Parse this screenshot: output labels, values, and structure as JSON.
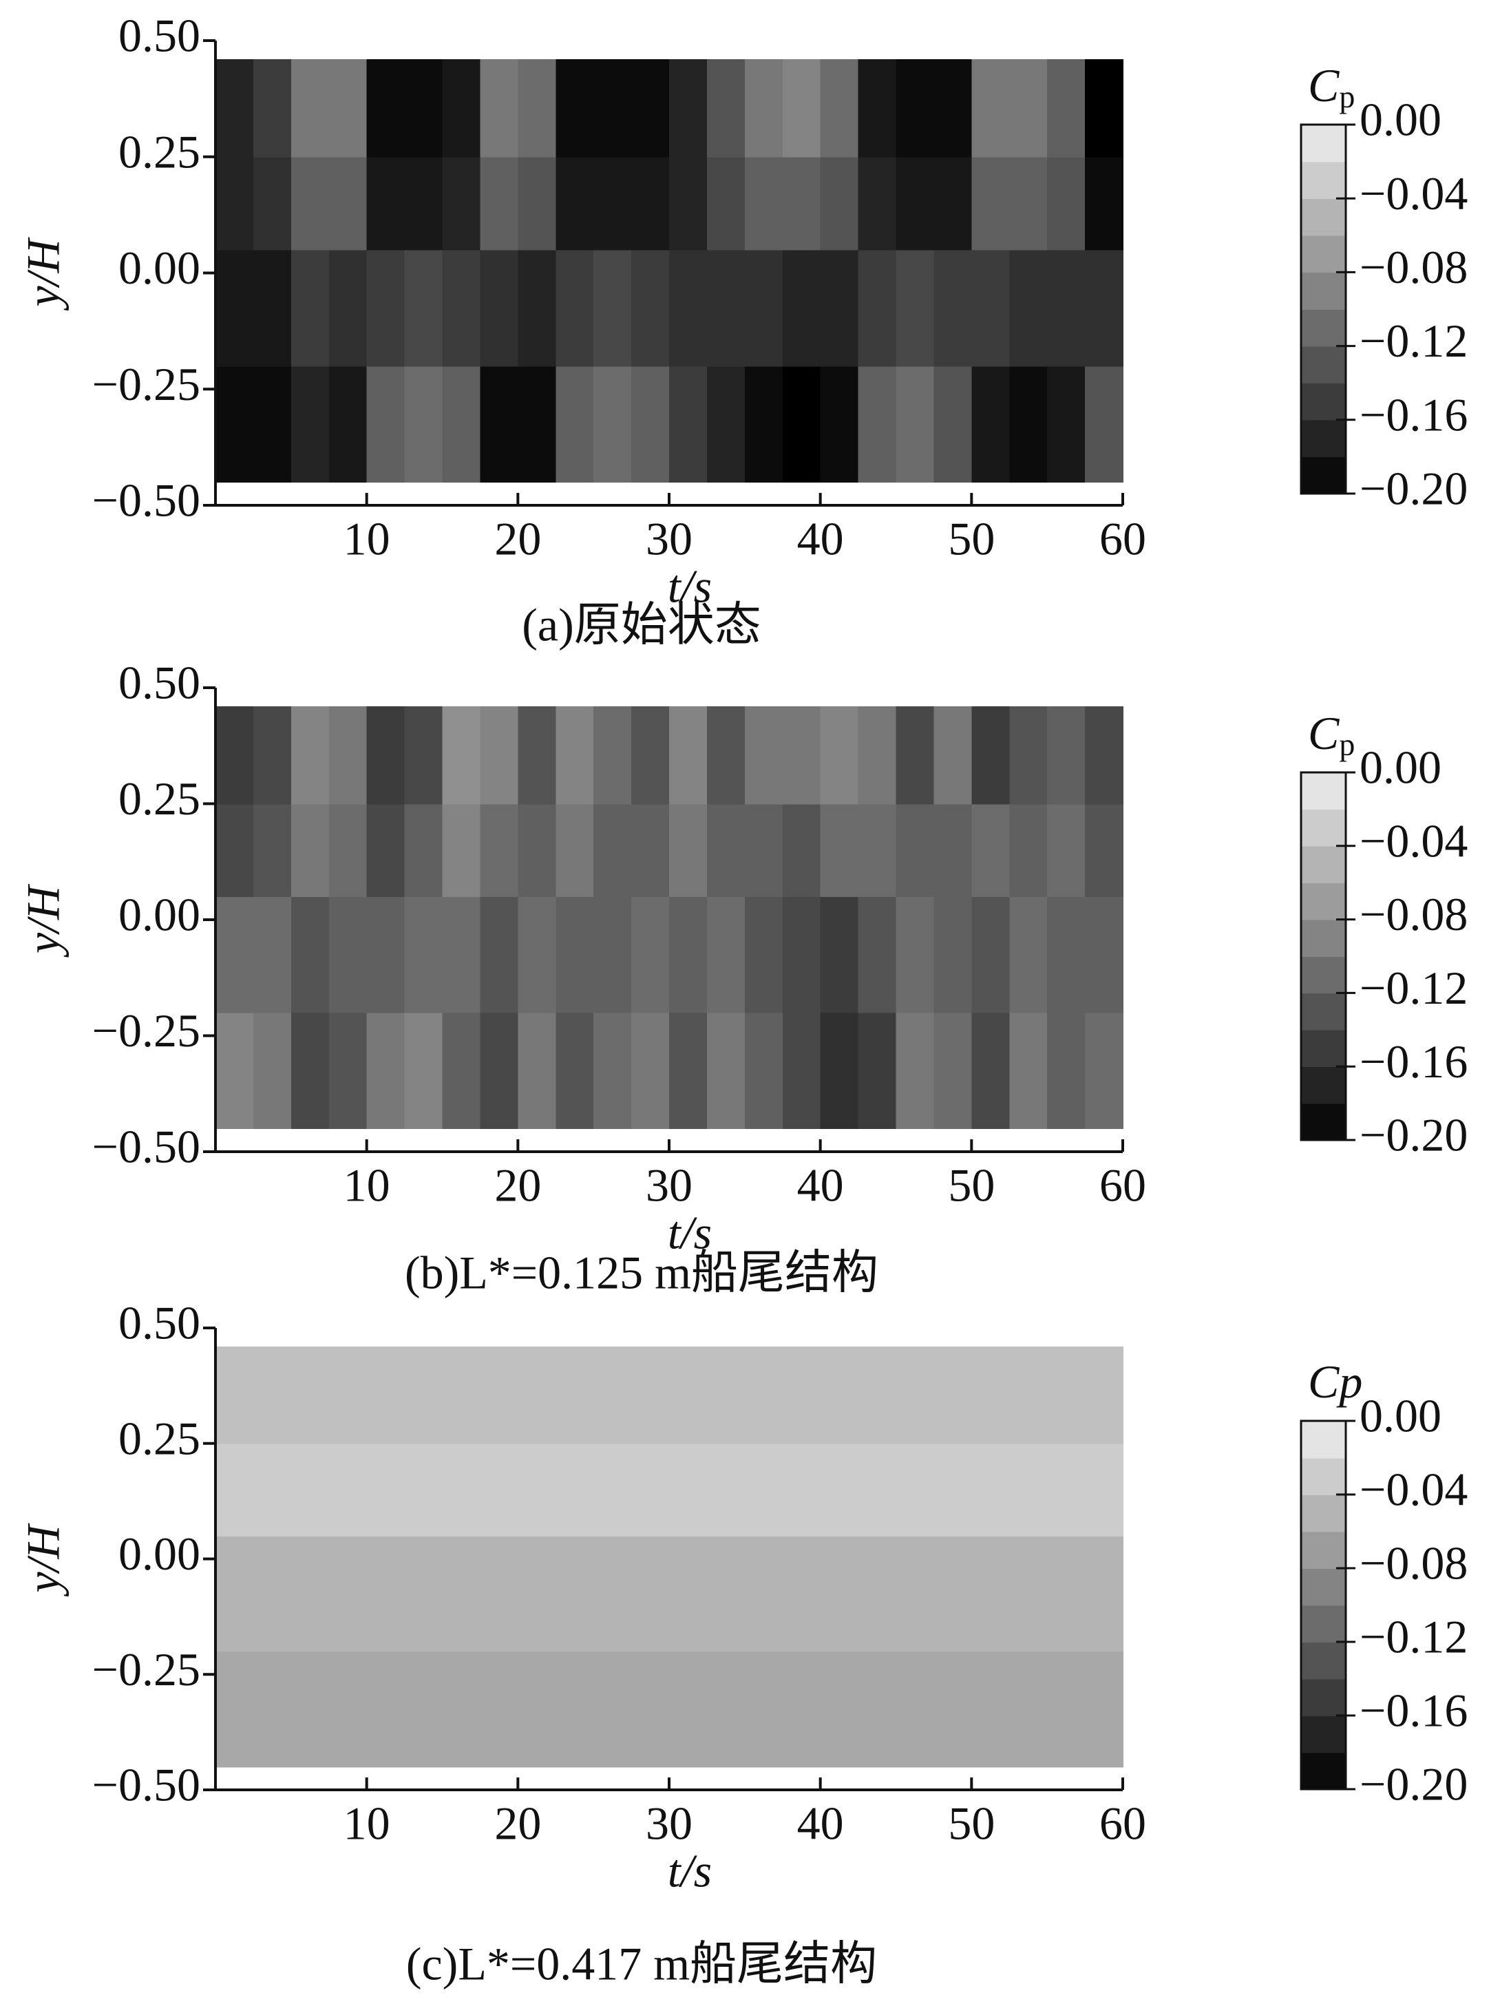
{
  "chart_data": [
    {
      "type": "heatmap",
      "caption": "(a)原始状态",
      "xlabel": "t/s",
      "ylabel": "y/H",
      "xlim": [
        0,
        60
      ],
      "ylim": [
        -0.5,
        0.5
      ],
      "xticks": [
        10,
        20,
        30,
        40,
        50,
        60
      ],
      "yticks": [
        {
          "value": -0.5,
          "label": "−0.50"
        },
        {
          "value": -0.25,
          "label": "−0.25"
        },
        {
          "value": 0,
          "label": "0.00"
        },
        {
          "value": 0.25,
          "label": "0.25"
        },
        {
          "value": 0.5,
          "label": "0.50"
        }
      ],
      "x_edges": [
        0,
        2.5,
        5,
        7.5,
        10,
        12.5,
        15,
        17.5,
        20,
        22.5,
        25,
        27.5,
        30,
        32.5,
        35,
        37.5,
        40,
        42.5,
        45,
        47.5,
        50,
        52.5,
        55,
        57.5,
        60
      ],
      "y_edges": [
        -0.45,
        -0.2,
        0.05,
        0.25,
        0.46
      ],
      "values": [
        [
          -0.19,
          -0.19,
          -0.17,
          -0.18,
          -0.12,
          -0.11,
          -0.12,
          -0.19,
          -0.19,
          -0.12,
          -0.11,
          -0.12,
          -0.15,
          -0.17,
          -0.19,
          -0.2,
          -0.19,
          -0.12,
          -0.11,
          -0.13,
          -0.18,
          -0.19,
          -0.18,
          -0.13
        ],
        [
          -0.18,
          -0.18,
          -0.15,
          -0.16,
          -0.15,
          -0.14,
          -0.15,
          -0.16,
          -0.17,
          -0.15,
          -0.14,
          -0.15,
          -0.16,
          -0.16,
          -0.16,
          -0.17,
          -0.17,
          -0.15,
          -0.14,
          -0.15,
          -0.15,
          -0.16,
          -0.16,
          -0.16
        ],
        [
          -0.17,
          -0.16,
          -0.12,
          -0.12,
          -0.18,
          -0.18,
          -0.17,
          -0.12,
          -0.13,
          -0.18,
          -0.18,
          -0.18,
          -0.17,
          -0.14,
          -0.12,
          -0.12,
          -0.13,
          -0.17,
          -0.18,
          -0.18,
          -0.12,
          -0.12,
          -0.13,
          -0.19
        ],
        [
          -0.17,
          -0.15,
          -0.1,
          -0.1,
          -0.19,
          -0.19,
          -0.18,
          -0.1,
          -0.11,
          -0.19,
          -0.19,
          -0.19,
          -0.17,
          -0.13,
          -0.1,
          -0.09,
          -0.11,
          -0.18,
          -0.19,
          -0.19,
          -0.1,
          -0.1,
          -0.12,
          -0.2
        ]
      ],
      "colorbar": {
        "label": {
          "symbol": "C",
          "subscript": "p"
        },
        "lim": [
          -0.2,
          0
        ],
        "ticks": [
          {
            "value": 0,
            "label": "0.00"
          },
          {
            "value": -0.04,
            "label": "−0.04"
          },
          {
            "value": -0.08,
            "label": "−0.08"
          },
          {
            "value": -0.12,
            "label": "−0.12"
          },
          {
            "value": -0.16,
            "label": "−0.16"
          },
          {
            "value": -0.2,
            "label": "−0.20"
          }
        ]
      }
    },
    {
      "type": "heatmap",
      "caption": "(b)L*=0.125 m船尾结构",
      "xlabel": "t/s",
      "ylabel": "y/H",
      "xlim": [
        0,
        60
      ],
      "ylim": [
        -0.5,
        0.5
      ],
      "xticks": [
        10,
        20,
        30,
        40,
        50,
        60
      ],
      "yticks": [
        {
          "value": -0.5,
          "label": "−0.50"
        },
        {
          "value": -0.25,
          "label": "−0.25"
        },
        {
          "value": 0,
          "label": "0.00"
        },
        {
          "value": 0.25,
          "label": "0.25"
        },
        {
          "value": 0.5,
          "label": "0.50"
        }
      ],
      "x_edges": [
        0,
        2.5,
        5,
        7.5,
        10,
        12.5,
        15,
        17.5,
        20,
        22.5,
        25,
        27.5,
        30,
        32.5,
        35,
        37.5,
        40,
        42.5,
        45,
        47.5,
        50,
        52.5,
        55,
        57.5,
        60
      ],
      "y_edges": [
        -0.45,
        -0.2,
        0.05,
        0.25,
        0.46
      ],
      "values": [
        [
          -0.09,
          -0.1,
          -0.14,
          -0.13,
          -0.1,
          -0.09,
          -0.12,
          -0.14,
          -0.1,
          -0.13,
          -0.11,
          -0.1,
          -0.13,
          -0.1,
          -0.12,
          -0.14,
          -0.16,
          -0.15,
          -0.1,
          -0.11,
          -0.14,
          -0.1,
          -0.12,
          -0.11
        ],
        [
          -0.11,
          -0.11,
          -0.13,
          -0.12,
          -0.12,
          -0.11,
          -0.11,
          -0.13,
          -0.11,
          -0.12,
          -0.12,
          -0.11,
          -0.12,
          -0.11,
          -0.13,
          -0.14,
          -0.15,
          -0.13,
          -0.11,
          -0.12,
          -0.13,
          -0.11,
          -0.12,
          -0.12
        ],
        [
          -0.14,
          -0.13,
          -0.1,
          -0.11,
          -0.14,
          -0.12,
          -0.09,
          -0.11,
          -0.12,
          -0.1,
          -0.12,
          -0.12,
          -0.1,
          -0.12,
          -0.12,
          -0.13,
          -0.11,
          -0.11,
          -0.12,
          -0.12,
          -0.11,
          -0.12,
          -0.11,
          -0.13
        ],
        [
          -0.15,
          -0.14,
          -0.09,
          -0.1,
          -0.15,
          -0.14,
          -0.08,
          -0.09,
          -0.13,
          -0.09,
          -0.11,
          -0.13,
          -0.09,
          -0.13,
          -0.1,
          -0.1,
          -0.09,
          -0.1,
          -0.14,
          -0.1,
          -0.15,
          -0.13,
          -0.12,
          -0.14
        ]
      ],
      "colorbar": {
        "label": {
          "symbol": "C",
          "subscript": "p"
        },
        "lim": [
          -0.2,
          0
        ],
        "ticks": [
          {
            "value": 0,
            "label": "0.00"
          },
          {
            "value": -0.04,
            "label": "−0.04"
          },
          {
            "value": -0.08,
            "label": "−0.08"
          },
          {
            "value": -0.12,
            "label": "−0.12"
          },
          {
            "value": -0.16,
            "label": "−0.16"
          },
          {
            "value": -0.2,
            "label": "−0.20"
          }
        ]
      }
    },
    {
      "type": "heatmap",
      "caption": "(c)L*=0.417 m船尾结构",
      "xlabel": "t/s",
      "ylabel": "y/H",
      "xlim": [
        0,
        60
      ],
      "ylim": [
        -0.5,
        0.5
      ],
      "xticks": [
        10,
        20,
        30,
        40,
        50,
        60
      ],
      "yticks": [
        {
          "value": -0.5,
          "label": "−0.50"
        },
        {
          "value": -0.25,
          "label": "−0.25"
        },
        {
          "value": 0,
          "label": "0.00"
        },
        {
          "value": 0.25,
          "label": "0.25"
        },
        {
          "value": 0.5,
          "label": "0.50"
        }
      ],
      "x_edges": [
        0,
        2.5,
        5,
        7.5,
        10,
        12.5,
        15,
        17.5,
        20,
        22.5,
        25,
        27.5,
        30,
        32.5,
        35,
        37.5,
        40,
        42.5,
        45,
        47.5,
        50,
        52.5,
        55,
        57.5,
        60
      ],
      "y_edges": [
        -0.45,
        -0.2,
        0.05,
        0.25,
        0.46
      ],
      "values": [
        [
          -0.06,
          -0.06,
          -0.06,
          -0.06,
          -0.06,
          -0.06,
          -0.06,
          -0.06,
          -0.06,
          -0.06,
          -0.06,
          -0.06,
          -0.06,
          -0.06,
          -0.06,
          -0.06,
          -0.06,
          -0.06,
          -0.06,
          -0.06,
          -0.06,
          -0.06,
          -0.06,
          -0.06
        ],
        [
          -0.05,
          -0.05,
          -0.05,
          -0.05,
          -0.05,
          -0.05,
          -0.05,
          -0.05,
          -0.05,
          -0.05,
          -0.05,
          -0.05,
          -0.05,
          -0.05,
          -0.05,
          -0.05,
          -0.05,
          -0.05,
          -0.05,
          -0.05,
          -0.05,
          -0.05,
          -0.05,
          -0.05
        ],
        [
          -0.03,
          -0.03,
          -0.03,
          -0.03,
          -0.03,
          -0.03,
          -0.03,
          -0.03,
          -0.03,
          -0.03,
          -0.03,
          -0.03,
          -0.03,
          -0.03,
          -0.03,
          -0.03,
          -0.03,
          -0.03,
          -0.03,
          -0.03,
          -0.03,
          -0.03,
          -0.03,
          -0.03
        ],
        [
          -0.04,
          -0.04,
          -0.04,
          -0.04,
          -0.04,
          -0.04,
          -0.04,
          -0.04,
          -0.04,
          -0.04,
          -0.04,
          -0.04,
          -0.04,
          -0.04,
          -0.04,
          -0.04,
          -0.04,
          -0.04,
          -0.04,
          -0.04,
          -0.04,
          -0.04,
          -0.04,
          -0.04
        ]
      ],
      "colorbar": {
        "label": {
          "symbol": "Cp"
        },
        "lim": [
          -0.2,
          0
        ],
        "ticks": [
          {
            "value": 0,
            "label": "0.00"
          },
          {
            "value": -0.04,
            "label": "−0.04"
          },
          {
            "value": -0.08,
            "label": "−0.08"
          },
          {
            "value": -0.12,
            "label": "−0.12"
          },
          {
            "value": -0.16,
            "label": "−0.16"
          },
          {
            "value": -0.2,
            "label": "−0.20"
          }
        ]
      }
    }
  ]
}
